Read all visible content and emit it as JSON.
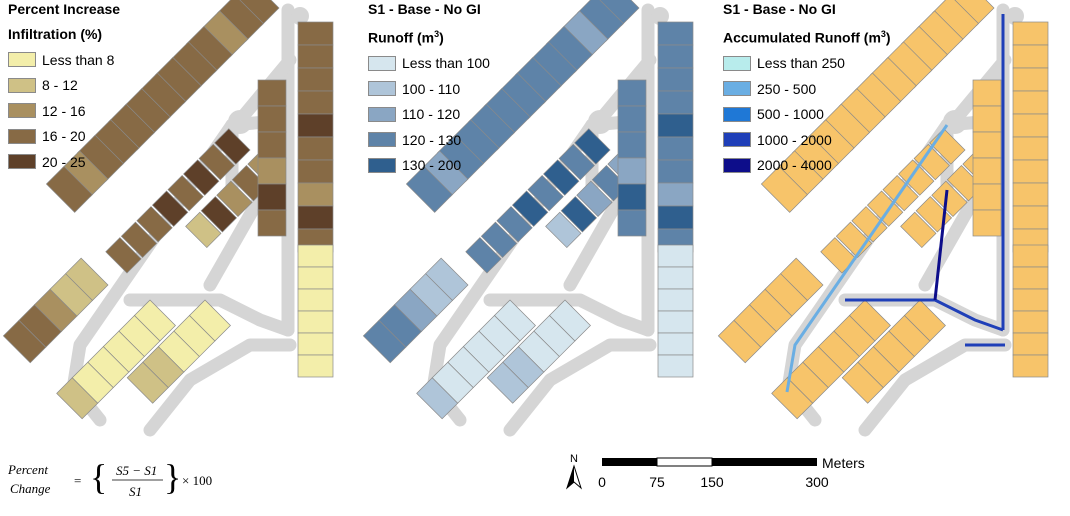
{
  "panels": [
    {
      "title_line1": "Percent Increase",
      "title_line2": "Infiltration (%)",
      "legend": [
        {
          "label": "Less than 8",
          "color": "#f3eeaa"
        },
        {
          "label": "8 - 12",
          "color": "#cfc186"
        },
        {
          "label": "12 - 16",
          "color": "#a99060"
        },
        {
          "label": "16 - 20",
          "color": "#876a45"
        },
        {
          "label": "20 - 25",
          "color": "#5e4029"
        }
      ]
    },
    {
      "title_line1": "S1 - Base - No GI",
      "title_line2": "Runoff (m",
      "title_sup": "3",
      "title_suffix": ")",
      "legend": [
        {
          "label": "Less than 100",
          "color": "#d6e6ee"
        },
        {
          "label": "100 - 110",
          "color": "#afc5d9"
        },
        {
          "label": "110 - 120",
          "color": "#8aa6c3"
        },
        {
          "label": "120 - 130",
          "color": "#5e83a8"
        },
        {
          "label": "130 - 200",
          "color": "#2f5f8e"
        }
      ]
    },
    {
      "title_line1": "S1 - Base - No GI",
      "title_line2": "Accumulated Runoff (m",
      "title_sup": "3",
      "title_suffix": ")",
      "legend": [
        {
          "label": "Less than 250",
          "color": "#b8ecec"
        },
        {
          "label": "250 - 500",
          "color": "#6aaee3"
        },
        {
          "label": "500 - 1000",
          "color": "#1f78d6"
        },
        {
          "label": "1000 - 2000",
          "color": "#1f3fb8"
        },
        {
          "label": "2000 - 4000",
          "color": "#0d0d8a"
        }
      ],
      "parcel_color": "#f7c46a"
    }
  ],
  "road_color": "#d5d5d5",
  "parcel_edge_color": "#8a8a8a",
  "formula": {
    "lhs_top": "Percent",
    "lhs_bottom": "Change",
    "equals": "=",
    "num": "S5 − S1",
    "den": "S1",
    "times": "× 100"
  },
  "scale": {
    "north": "N",
    "unit": "Meters",
    "ticks": [
      "0",
      "75",
      "150",
      "300"
    ]
  }
}
